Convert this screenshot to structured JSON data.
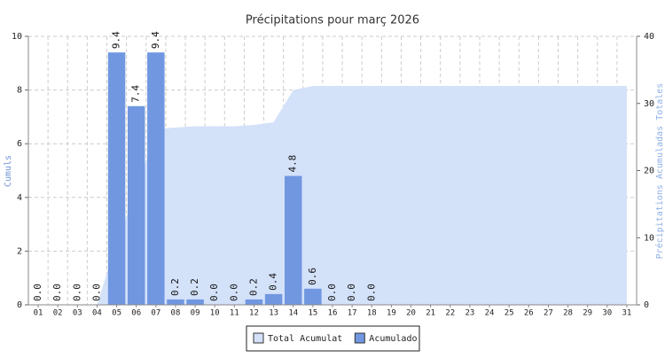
{
  "chart_data": {
    "type": "bar",
    "title": "Précipitations pour març 2026",
    "categories": [
      "01",
      "02",
      "03",
      "04",
      "05",
      "06",
      "07",
      "08",
      "09",
      "10",
      "11",
      "12",
      "13",
      "14",
      "15",
      "16",
      "17",
      "18",
      "19",
      "20",
      "21",
      "22",
      "23",
      "24",
      "25",
      "26",
      "27",
      "28",
      "29",
      "30",
      "31"
    ],
    "series": [
      {
        "name": "Total Acumulat",
        "type": "area",
        "axis": "y2",
        "color": "#d3e1f9",
        "values": [
          0,
          0,
          0,
          0,
          9.4,
          16.8,
          26.2,
          26.4,
          26.6,
          26.6,
          26.6,
          26.8,
          27.2,
          32,
          32.6,
          32.6,
          32.6,
          32.6,
          32.6,
          32.6,
          32.6,
          32.6,
          32.6,
          32.6,
          32.6,
          32.6,
          32.6,
          32.6,
          32.6,
          32.6,
          32.6
        ]
      },
      {
        "name": "Acumulado",
        "type": "bar",
        "color": "#7097e0",
        "values": [
          0,
          0,
          0,
          0,
          9.4,
          7.4,
          9.4,
          0.2,
          0.2,
          0,
          0,
          0.2,
          0.4,
          4.8,
          0.6,
          0,
          0,
          0,
          null,
          null,
          null,
          null,
          null,
          null,
          null,
          null,
          null,
          null,
          null,
          null,
          null
        ],
        "value_labels": [
          "0.0",
          "0.0",
          "0.0",
          "0.0",
          "9.4",
          "7.4",
          "9.4",
          "0.2",
          "0.2",
          "0.0",
          "0.0",
          "0.2",
          "0.4",
          "4.8",
          "0.6",
          "0.0",
          "0.0",
          "0.0",
          null,
          null,
          null,
          null,
          null,
          null,
          null,
          null,
          null,
          null,
          null,
          null,
          null
        ]
      }
    ],
    "ylabel": "Cumuls",
    "y2label": "Précipitations Acumuladas Totales",
    "ylim": [
      0,
      10
    ],
    "yticks": [
      0,
      2,
      4,
      6,
      8,
      10
    ],
    "y2lim": [
      0,
      40
    ],
    "y2ticks": [
      0,
      10,
      20,
      30,
      40
    ],
    "grid": true,
    "legend": "bottom"
  }
}
